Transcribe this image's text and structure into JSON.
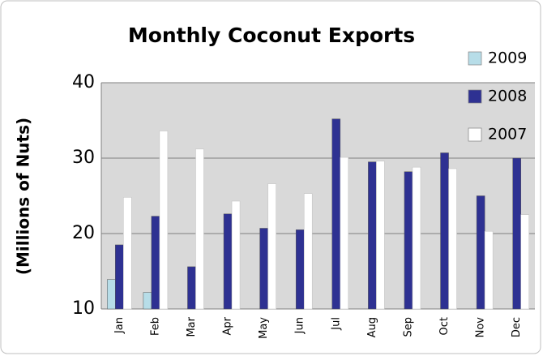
{
  "chart_data": {
    "type": "bar",
    "title": "Monthly Coconut Exports",
    "y_label": "(Millions of Nuts)",
    "categories": [
      "Jan",
      "Feb",
      "Mar",
      "Apr",
      "May",
      "Jun",
      "Jul",
      "Aug",
      "Sep",
      "Oct",
      "Nov",
      "Dec"
    ],
    "series": [
      {
        "name": "2009",
        "color": "#b7dde8",
        "values": [
          13.9,
          12.2,
          null,
          null,
          null,
          null,
          null,
          null,
          null,
          null,
          null,
          null
        ]
      },
      {
        "name": "2008",
        "color": "#2e3192",
        "values": [
          18.5,
          22.3,
          15.6,
          22.6,
          20.7,
          20.5,
          35.2,
          29.5,
          28.2,
          30.7,
          25.0,
          30.0
        ]
      },
      {
        "name": "2007",
        "color": "#ffffff",
        "values": [
          24.8,
          33.6,
          31.2,
          24.3,
          26.6,
          25.3,
          30.1,
          29.6,
          28.8,
          28.6,
          20.3,
          22.5
        ]
      }
    ],
    "ylim": [
      10,
      40
    ],
    "yticks": [
      10,
      20,
      30,
      40
    ],
    "grid": true,
    "legend": "top-right"
  }
}
